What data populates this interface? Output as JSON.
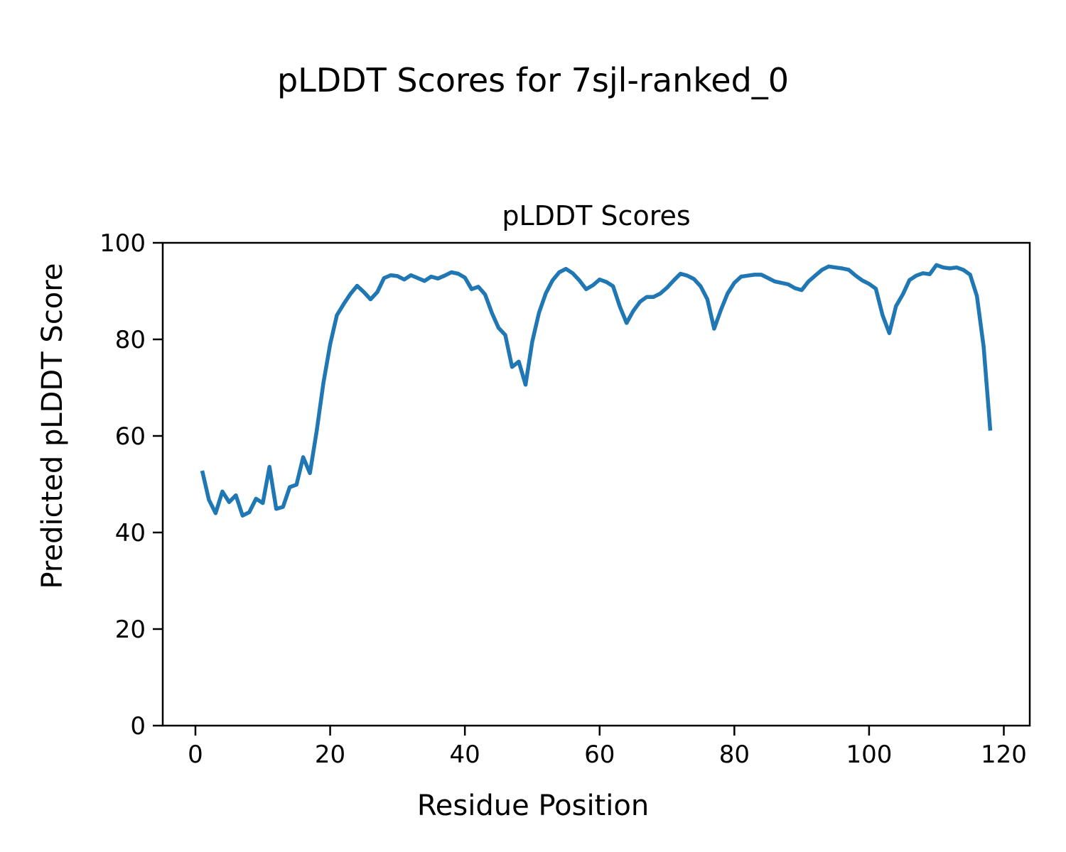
{
  "page": {
    "suptitle": "pLDDT Scores for 7sjl-ranked_0"
  },
  "chart_data": {
    "type": "line",
    "title": "pLDDT Scores",
    "xlabel": "Residue Position",
    "ylabel": "Predicted pLDDT Score",
    "xlim": [
      -4.85,
      123.85
    ],
    "ylim": [
      0,
      100
    ],
    "xticks": [
      0,
      20,
      40,
      60,
      80,
      100,
      120
    ],
    "yticks": [
      0,
      20,
      40,
      60,
      80,
      100
    ],
    "grid": false,
    "legend_position": "none",
    "line_color": "#1f77b4",
    "line_width": 5.5,
    "x_start": 1,
    "x_step": 1,
    "series": [
      {
        "name": "pLDDT",
        "values": [
          52.8,
          46.8,
          44.0,
          48.5,
          46.3,
          47.7,
          43.5,
          44.2,
          47.0,
          46.1,
          53.6,
          44.9,
          45.3,
          49.4,
          49.9,
          55.6,
          52.3,
          61.0,
          71.0,
          79.0,
          85.0,
          87.3,
          89.4,
          91.1,
          89.8,
          88.3,
          89.8,
          92.7,
          93.3,
          93.1,
          92.4,
          93.3,
          92.7,
          92.1,
          93.0,
          92.6,
          93.2,
          93.9,
          93.6,
          92.8,
          90.4,
          90.9,
          89.3,
          85.5,
          82.4,
          80.9,
          74.3,
          75.4,
          70.6,
          79.5,
          85.5,
          89.5,
          92.2,
          93.9,
          94.6,
          93.7,
          92.2,
          90.4,
          91.2,
          92.4,
          91.9,
          91.0,
          86.8,
          83.4,
          85.9,
          87.8,
          88.8,
          88.8,
          89.5,
          90.7,
          92.2,
          93.6,
          93.2,
          92.5,
          91.0,
          88.3,
          82.2,
          86.1,
          89.5,
          91.7,
          93.0,
          93.2,
          93.4,
          93.4,
          92.7,
          92.0,
          91.7,
          91.4,
          90.6,
          90.2,
          92.0,
          93.2,
          94.4,
          95.1,
          94.9,
          94.7,
          94.4,
          93.2,
          92.2,
          91.5,
          90.5,
          85.0,
          81.3,
          86.9,
          89.3,
          92.3,
          93.2,
          93.7,
          93.5,
          95.4,
          94.9,
          94.7,
          94.9,
          94.4,
          93.4,
          89.0,
          78.5,
          61.1
        ]
      }
    ]
  }
}
